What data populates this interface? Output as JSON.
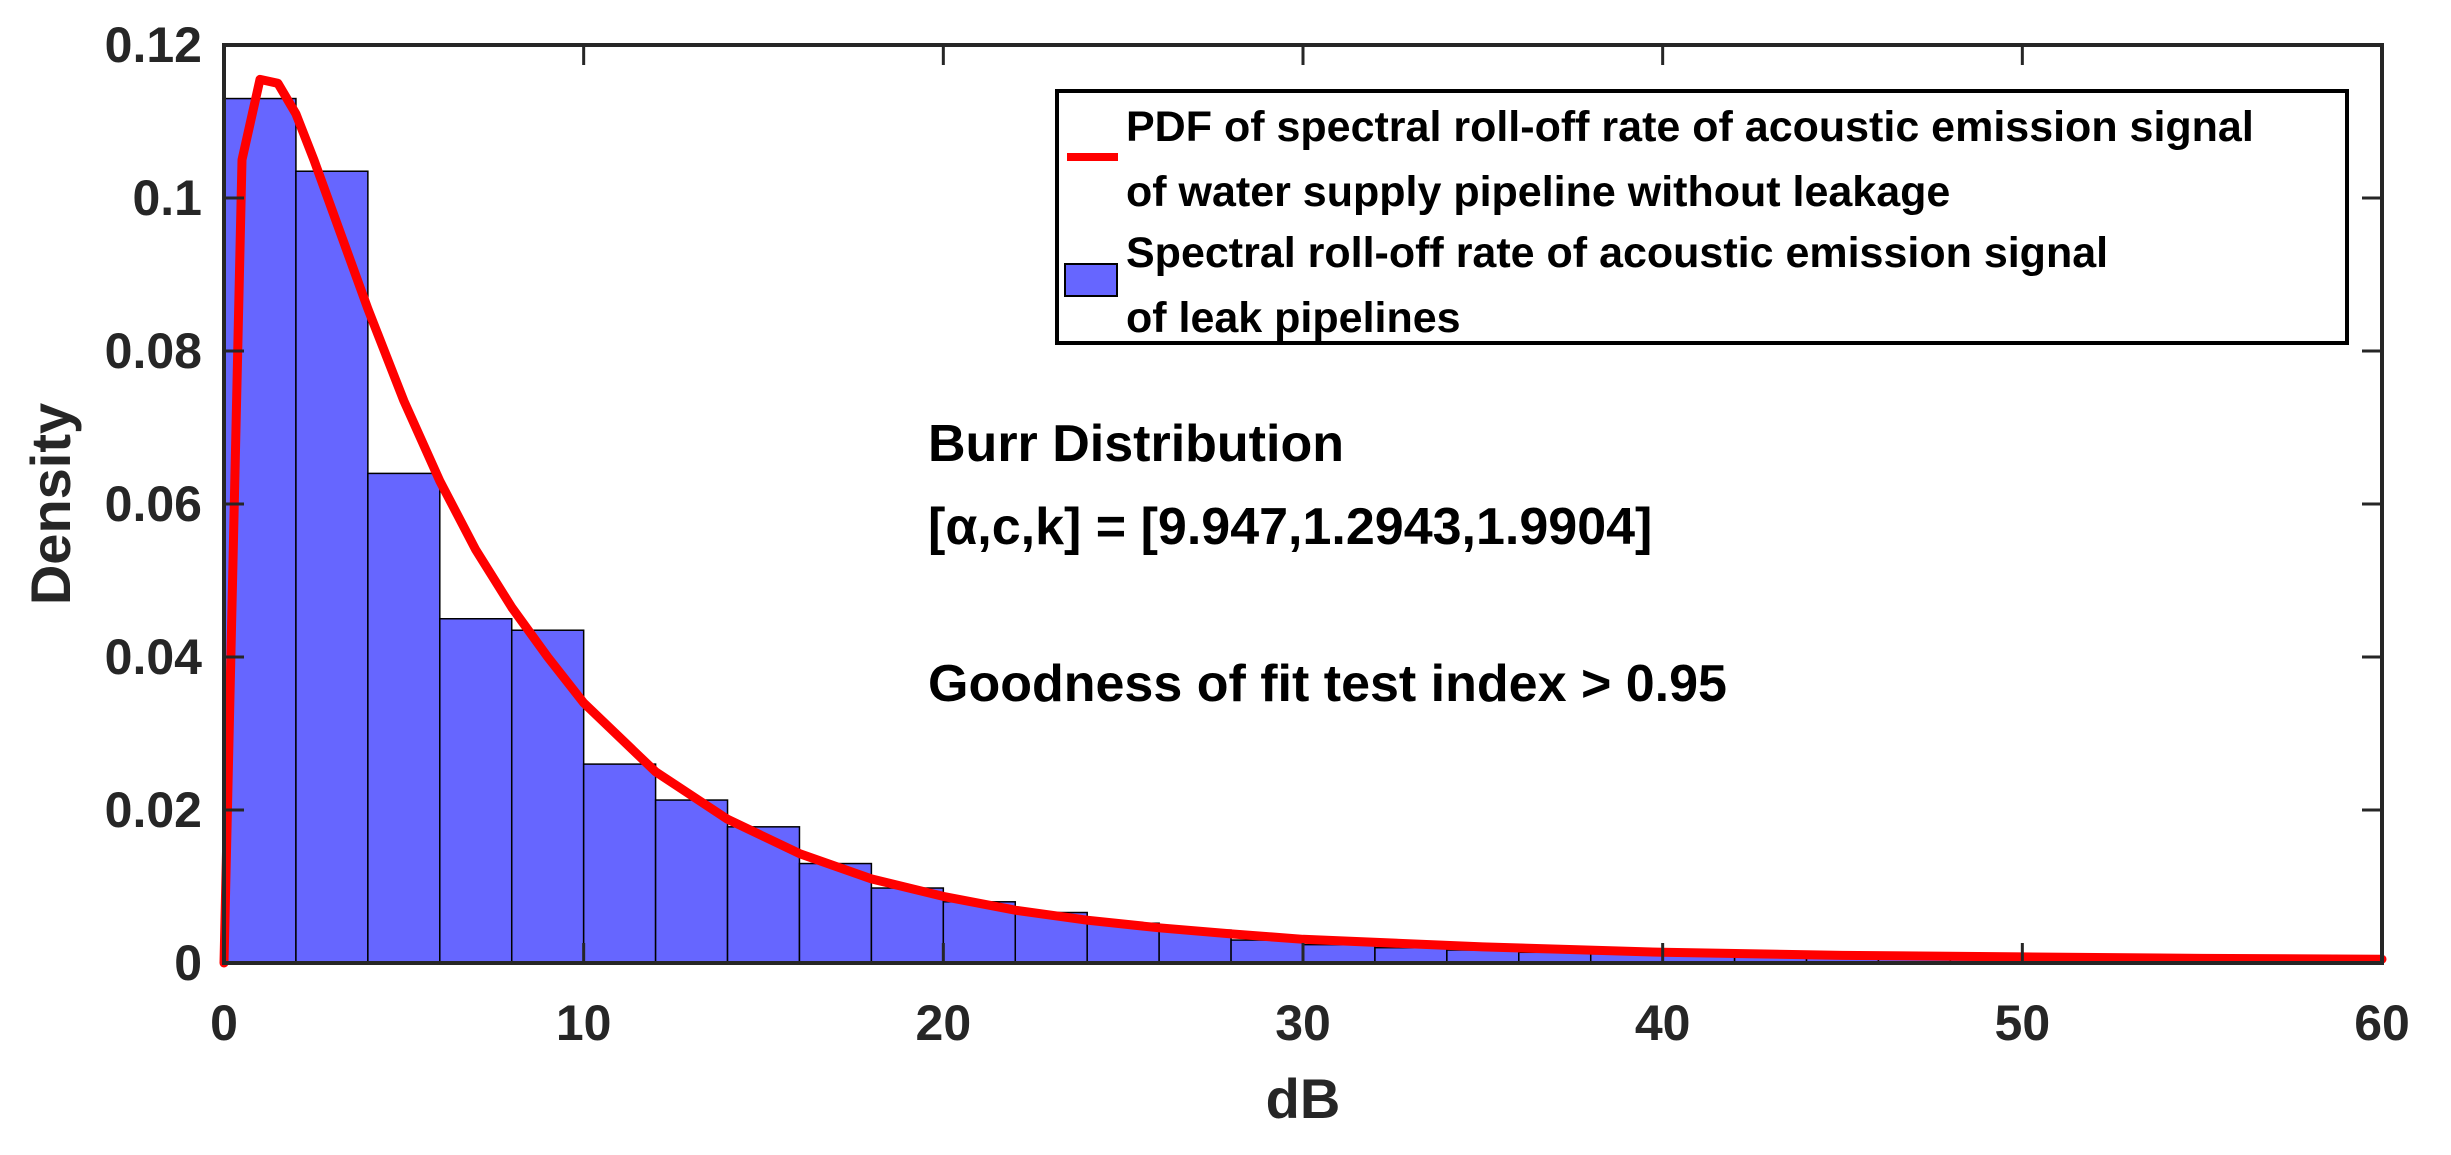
{
  "chart_data": {
    "type": "bar",
    "xlabel": "dB",
    "ylabel": "Density",
    "xlim": [
      0,
      60
    ],
    "ylim": [
      0,
      0.12
    ],
    "xticks": [
      0,
      10,
      20,
      30,
      40,
      50,
      60
    ],
    "yticks": [
      0,
      0.02,
      0.04,
      0.06,
      0.08,
      0.1,
      0.12
    ],
    "xtick_labels": [
      "0",
      "10",
      "20",
      "30",
      "40",
      "50",
      "60"
    ],
    "ytick_labels": [
      "0",
      "0.02",
      "0.04",
      "0.06",
      "0.08",
      "0.1",
      "0.12"
    ],
    "grid": false,
    "legend_position": "top-right",
    "histogram": {
      "name": "Spectral roll-off rate of acoustic emission signal of leak pipelines",
      "color": "#6666ff",
      "bin_width": 2,
      "bin_edges_start": 0,
      "values": [
        0.113,
        0.1035,
        0.064,
        0.045,
        0.0435,
        0.026,
        0.0213,
        0.0178,
        0.013,
        0.0098,
        0.008,
        0.0066,
        0.0052,
        0.0043,
        0.003,
        0.0024,
        0.002,
        0.0017,
        0.0014,
        0.0012,
        0.001,
        0.0009,
        0.0008,
        0.0007,
        0.0006,
        0.0006,
        0.0005,
        0.0004,
        0.0004,
        0.0003
      ]
    },
    "pdf": {
      "name": "PDF of spectral roll-off rate of acoustic emission signal of water supply pipeline without leakage",
      "color": "#ff0000",
      "distribution": "Burr",
      "x": [
        0,
        0.5,
        1,
        1.5,
        2,
        2.5,
        3,
        4,
        5,
        6,
        7,
        8,
        9,
        10,
        12,
        14,
        16,
        18,
        20,
        22,
        24,
        26,
        28,
        30,
        35,
        40,
        45,
        50,
        55,
        60
      ],
      "y": [
        0,
        0.105,
        0.1155,
        0.115,
        0.111,
        0.105,
        0.0985,
        0.0855,
        0.0735,
        0.063,
        0.054,
        0.0465,
        0.04,
        0.034,
        0.025,
        0.0188,
        0.0143,
        0.011,
        0.0087,
        0.0069,
        0.0056,
        0.0046,
        0.0038,
        0.0031,
        0.0021,
        0.0014,
        0.001,
        0.0008,
        0.0006,
        0.0005
      ]
    },
    "legend": [
      {
        "line1": "PDF of spectral roll-off rate of acoustic emission signal",
        "line2": "of water supply pipeline without leakage"
      },
      {
        "line1": "Spectral roll-off rate of acoustic emission signal",
        "line2": "of leak pipelines"
      }
    ],
    "annotations": [
      "Burr Distribution",
      "[α,c,k] = [9.947,1.2943,1.9904]",
      "Goodness of fit test index > 0.95"
    ]
  }
}
